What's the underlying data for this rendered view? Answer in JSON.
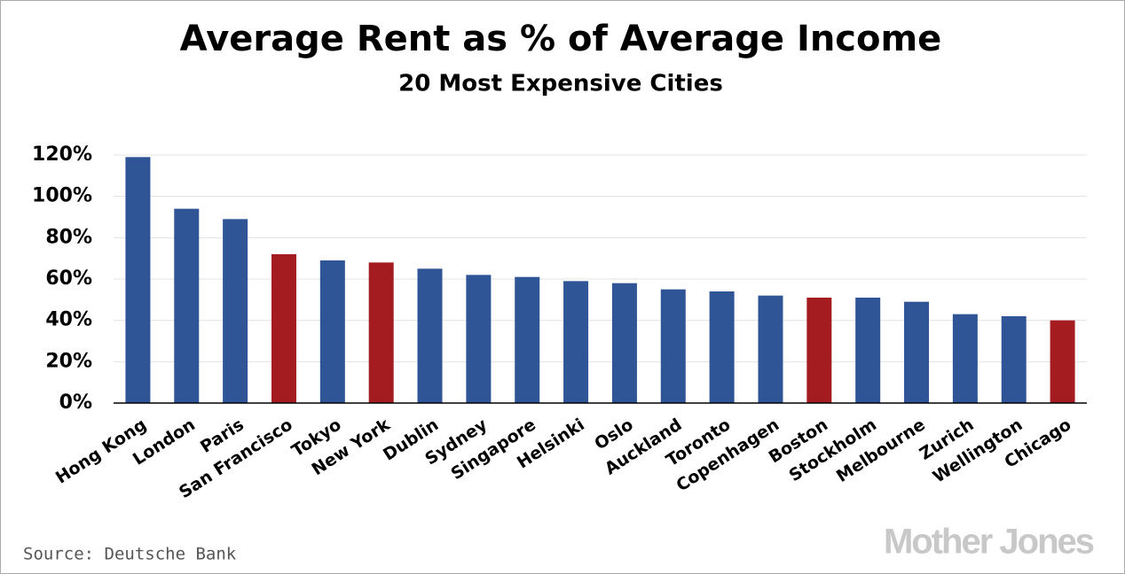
{
  "chart_data": {
    "type": "bar",
    "title": "Average Rent as % of Average Income",
    "subtitle": "20 Most Expensive Cities",
    "source": "Source: Deutsche Bank",
    "brand": "Mother Jones",
    "categories": [
      "Hong Kong",
      "London",
      "Paris",
      "San Francisco",
      "Tokyo",
      "New York",
      "Dublin",
      "Sydney",
      "Singapore",
      "Helsinki",
      "Oslo",
      "Auckland",
      "Toronto",
      "Copenhagen",
      "Boston",
      "Stockholm",
      "Melbourne",
      "Zurich",
      "Wellington",
      "Chicago"
    ],
    "values": [
      119,
      94,
      89,
      72,
      69,
      68,
      65,
      62,
      61,
      59,
      58,
      55,
      54,
      52,
      51,
      51,
      49,
      43,
      42,
      40
    ],
    "colors": [
      "#2f5597",
      "#2f5597",
      "#2f5597",
      "#a51c20",
      "#2f5597",
      "#a51c20",
      "#2f5597",
      "#2f5597",
      "#2f5597",
      "#2f5597",
      "#2f5597",
      "#2f5597",
      "#2f5597",
      "#2f5597",
      "#a51c20",
      "#2f5597",
      "#2f5597",
      "#2f5597",
      "#2f5597",
      "#a51c20"
    ],
    "ylim": [
      0,
      120
    ],
    "yticks": [
      {
        "value": 0,
        "label": "0%"
      },
      {
        "value": 20,
        "label": "20%"
      },
      {
        "value": 40,
        "label": "40%"
      },
      {
        "value": 60,
        "label": "60%"
      },
      {
        "value": 80,
        "label": "80%"
      },
      {
        "value": 100,
        "label": "100%"
      },
      {
        "value": 120,
        "label": "120%"
      }
    ],
    "grid": true
  }
}
